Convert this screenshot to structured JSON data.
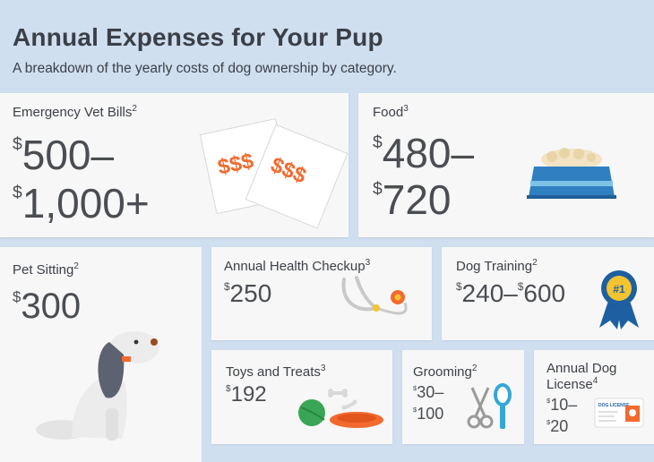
{
  "header": {
    "title": "Annual Expenses for Your Pup",
    "subtitle": "A breakdown of the yearly costs of dog ownership by category."
  },
  "cards": {
    "vet": {
      "label": "Emergency Vet Bills",
      "note": "2",
      "line1": "500–",
      "line2": "1,000+",
      "paper_text": "$$$"
    },
    "food": {
      "label": "Food",
      "note": "3",
      "line1": "480–",
      "line2": "720"
    },
    "sitting": {
      "label": "Pet Sitting",
      "note": "2",
      "line1": "300"
    },
    "health": {
      "label": "Annual Health Checkup",
      "note": "3",
      "line1": "250"
    },
    "training": {
      "label": "Dog Training",
      "note": "2",
      "part1": "240–",
      "part2": "600",
      "ribbon_text": "#1"
    },
    "toys": {
      "label": "Toys and Treats",
      "note": "3",
      "line1": "192"
    },
    "grooming": {
      "label": "Grooming",
      "note": "2",
      "line1": "30–",
      "line2": "100"
    },
    "license": {
      "label_line1": "Annual Dog",
      "label_line2": "License",
      "note": "4",
      "line1": "10–",
      "line2": "20",
      "card_text": "DOG LICENSE"
    }
  },
  "currency": "$",
  "colors": {
    "background": "#cfdff0",
    "card": "#f7f7f7",
    "accent_orange": "#f26a2e",
    "bowl_blue": "#2f7fc1",
    "ribbon_blue": "#1d5fa0",
    "ribbon_gold": "#f4c430",
    "ball_green": "#3aa655"
  }
}
